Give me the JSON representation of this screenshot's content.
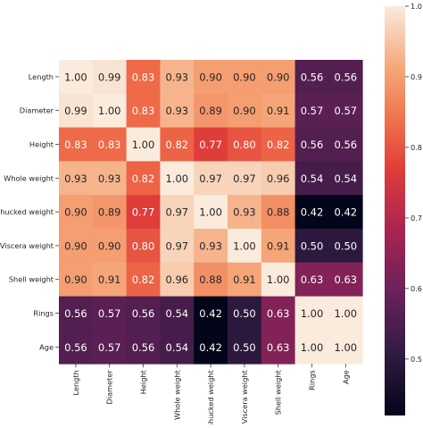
{
  "chart_data": {
    "type": "heatmap",
    "title": "",
    "xlabel": "",
    "ylabel": "",
    "rows": [
      "Length",
      "Diameter",
      "Height",
      "Whole weight",
      "Shucked weight",
      "Viscera weight",
      "Shell weight",
      "Rings",
      "Age"
    ],
    "columns": [
      "Length",
      "Diameter",
      "Height",
      "Whole weight",
      "Shucked weight",
      "Viscera weight",
      "Shell weight",
      "Rings",
      "Age"
    ],
    "values": [
      [
        1.0,
        0.99,
        0.83,
        0.93,
        0.9,
        0.9,
        0.9,
        0.56,
        0.56
      ],
      [
        0.99,
        1.0,
        0.83,
        0.93,
        0.89,
        0.9,
        0.91,
        0.57,
        0.57
      ],
      [
        0.83,
        0.83,
        1.0,
        0.82,
        0.77,
        0.8,
        0.82,
        0.56,
        0.56
      ],
      [
        0.93,
        0.93,
        0.82,
        1.0,
        0.97,
        0.97,
        0.96,
        0.54,
        0.54
      ],
      [
        0.9,
        0.89,
        0.77,
        0.97,
        1.0,
        0.93,
        0.88,
        0.42,
        0.42
      ],
      [
        0.9,
        0.9,
        0.8,
        0.97,
        0.93,
        1.0,
        0.91,
        0.5,
        0.5
      ],
      [
        0.9,
        0.91,
        0.82,
        0.96,
        0.88,
        0.91,
        1.0,
        0.63,
        0.63
      ],
      [
        0.56,
        0.57,
        0.56,
        0.54,
        0.42,
        0.5,
        0.63,
        1.0,
        1.0
      ],
      [
        0.56,
        0.57,
        0.56,
        0.54,
        0.42,
        0.5,
        0.63,
        1.0,
        1.0
      ]
    ],
    "value_format": "2 decimals",
    "colorbar": {
      "range": [
        0.42,
        1.0
      ],
      "ticks": [
        0.5,
        0.6,
        0.7,
        0.8,
        0.9,
        1.0
      ],
      "tick_labels": [
        "0.5",
        "0.6",
        "0.7",
        "0.8",
        "0.9",
        "1.0"
      ],
      "colormap": "rocket"
    },
    "annotation_colors": {
      "on_light": "#262626",
      "on_dark": "#ffffff"
    }
  }
}
